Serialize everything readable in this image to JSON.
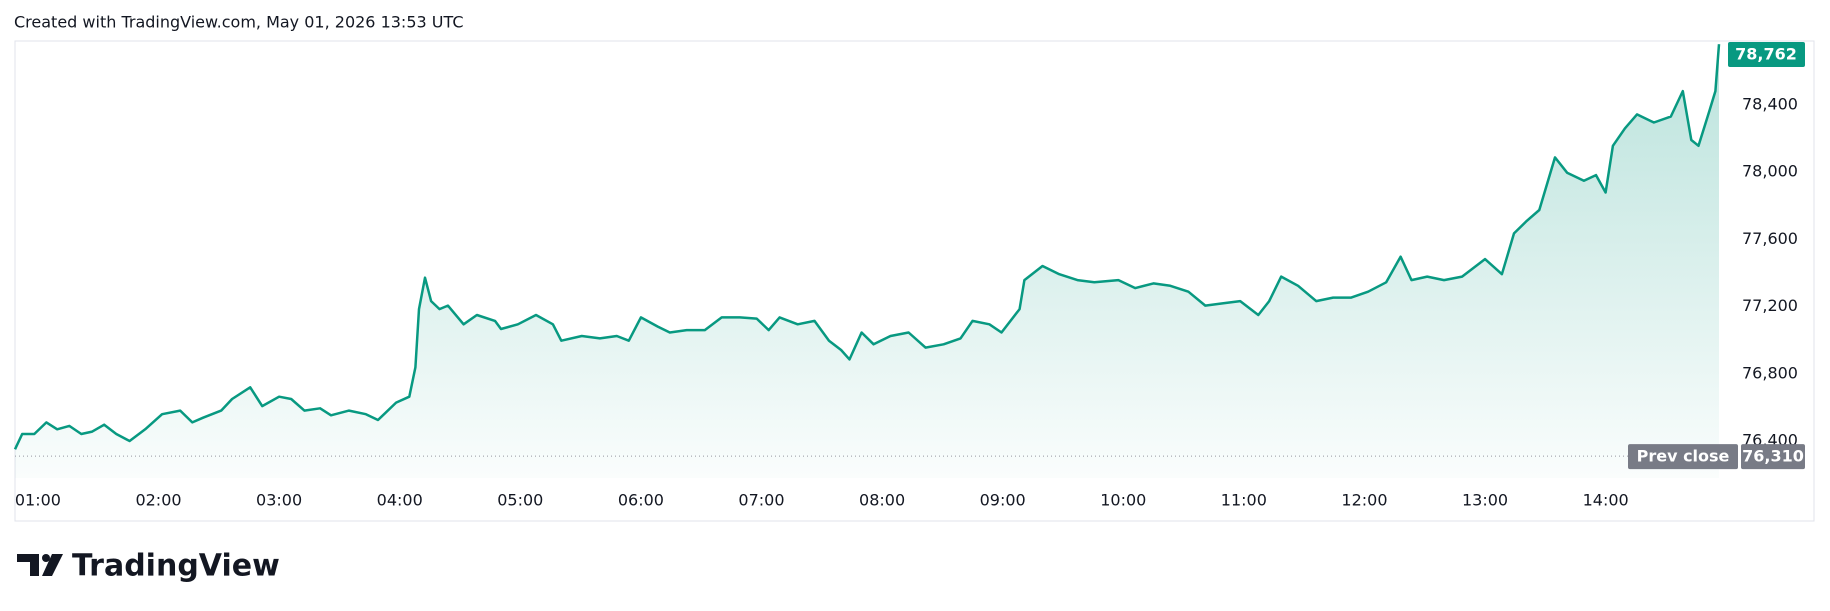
{
  "header": "Created with TradingView.com, May 01, 2026 13:53 UTC",
  "brand": "TradingView",
  "chart_data": {
    "type": "area",
    "color": "#089981",
    "x": [
      0.81,
      0.87,
      0.97,
      1.07,
      1.16,
      1.26,
      1.36,
      1.45,
      1.55,
      1.65,
      1.76,
      1.89,
      2.03,
      2.18,
      2.28,
      2.37,
      2.52,
      2.61,
      2.76,
      2.86,
      3.0,
      3.1,
      3.21,
      3.34,
      3.43,
      3.58,
      3.72,
      3.82,
      3.97,
      4.08,
      4.13,
      4.16,
      4.21,
      4.26,
      4.33,
      4.4,
      4.53,
      4.64,
      4.79,
      4.84,
      4.98,
      5.13,
      5.27,
      5.34,
      5.51,
      5.66,
      5.8,
      5.9,
      6.0,
      6.14,
      6.24,
      6.38,
      6.53,
      6.67,
      6.82,
      6.96,
      7.06,
      7.15,
      7.3,
      7.44,
      7.56,
      7.66,
      7.73,
      7.83,
      7.93,
      8.07,
      8.22,
      8.36,
      8.51,
      8.65,
      8.75,
      8.89,
      8.99,
      9.14,
      9.18,
      9.33,
      9.47,
      9.62,
      9.76,
      9.96,
      10.1,
      10.25,
      10.39,
      10.54,
      10.68,
      10.83,
      10.97,
      11.12,
      11.21,
      11.31,
      11.45,
      11.6,
      11.74,
      11.89,
      12.03,
      12.18,
      12.3,
      12.39,
      12.52,
      12.66,
      12.81,
      13.0,
      13.14,
      13.24,
      13.34,
      13.45,
      13.58,
      13.68,
      13.82,
      13.92,
      14.0,
      14.06,
      14.16,
      14.26,
      14.4,
      14.54,
      14.64,
      14.71,
      14.77,
      14.86,
      14.91,
      14.94
    ],
    "values": [
      76351,
      76442,
      76442,
      76511,
      76470,
      76490,
      76442,
      76456,
      76497,
      76442,
      76400,
      76470,
      76560,
      76581,
      76511,
      76539,
      76581,
      76650,
      76720,
      76608,
      76664,
      76650,
      76581,
      76595,
      76553,
      76581,
      76560,
      76525,
      76629,
      76664,
      76838,
      77185,
      77372,
      77233,
      77185,
      77206,
      77095,
      77150,
      77115,
      77067,
      77095,
      77150,
      77095,
      76997,
      77025,
      77011,
      77025,
      76997,
      77136,
      77081,
      77046,
      77060,
      77060,
      77136,
      77136,
      77129,
      77060,
      77136,
      77095,
      77115,
      76997,
      76942,
      76886,
      77046,
      76976,
      77025,
      77046,
      76956,
      76976,
      77011,
      77115,
      77095,
      77046,
      77185,
      77358,
      77442,
      77393,
      77358,
      77345,
      77358,
      77310,
      77338,
      77324,
      77289,
      77206,
      77220,
      77233,
      77150,
      77233,
      77379,
      77324,
      77233,
      77254,
      77254,
      77289,
      77345,
      77497,
      77358,
      77379,
      77358,
      77379,
      77483,
      77393,
      77636,
      77706,
      77775,
      78088,
      77997,
      77949,
      77983,
      77879,
      78157,
      78261,
      78344,
      78296,
      78331,
      78483,
      78192,
      78157,
      78365,
      78483,
      78762
    ],
    "xlim": [
      0.81,
      14.94
    ],
    "ylim": [
      76180,
      78781
    ],
    "xticks": [
      {
        "value": 1,
        "label": "01:00"
      },
      {
        "value": 2,
        "label": "02:00"
      },
      {
        "value": 3,
        "label": "03:00"
      },
      {
        "value": 4,
        "label": "04:00"
      },
      {
        "value": 5,
        "label": "05:00"
      },
      {
        "value": 6,
        "label": "06:00"
      },
      {
        "value": 7,
        "label": "07:00"
      },
      {
        "value": 8,
        "label": "08:00"
      },
      {
        "value": 9,
        "label": "09:00"
      },
      {
        "value": 10,
        "label": "10:00"
      },
      {
        "value": 11,
        "label": "11:00"
      },
      {
        "value": 12,
        "label": "12:00"
      },
      {
        "value": 13,
        "label": "13:00"
      },
      {
        "value": 14,
        "label": "14:00"
      }
    ],
    "yticks": [
      {
        "value": 76400,
        "label": "76,400"
      },
      {
        "value": 76800,
        "label": "76,800"
      },
      {
        "value": 77200,
        "label": "77,200"
      },
      {
        "value": 77600,
        "label": "77,600"
      },
      {
        "value": 78000,
        "label": "78,000"
      },
      {
        "value": 78400,
        "label": "78,400"
      }
    ],
    "last_price": {
      "value": 78762,
      "label": "78,762"
    },
    "prev_close": {
      "name": "Prev close",
      "value": 76310,
      "label": "76,310"
    }
  }
}
